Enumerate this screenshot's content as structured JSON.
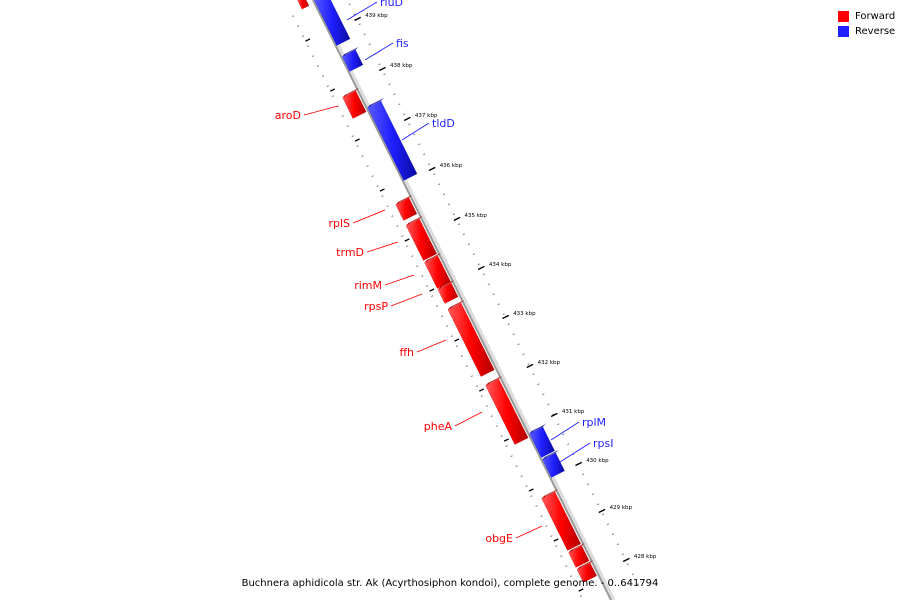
{
  "colors": {
    "forward": "#ff0000",
    "reverse": "#1f1fff",
    "backbone": "#999999"
  },
  "legend": [
    {
      "label": "Forward",
      "color": "#ff0000"
    },
    {
      "label": "Reverse",
      "color": "#1f1fff"
    }
  ],
  "caption": "Buchnera aphidicola str. Ak (Acyrthosiphon kondoi), complete genome. - 0..641794",
  "tick_labels": [
    "439 kbp",
    "438 kbp",
    "437 kbp",
    "436 kbp",
    "435 kbp",
    "434 kbp",
    "433 kbp",
    "432 kbp",
    "431 kbp",
    "430 kbp",
    "429 kbp",
    "428 kbp"
  ],
  "genes": [
    {
      "name": "rluD",
      "strand": "reverse"
    },
    {
      "name": "fis",
      "strand": "reverse"
    },
    {
      "name": "aroD",
      "strand": "forward"
    },
    {
      "name": "tldD",
      "strand": "reverse"
    },
    {
      "name": "rplS",
      "strand": "forward"
    },
    {
      "name": "trmD",
      "strand": "forward"
    },
    {
      "name": "rimM",
      "strand": "forward"
    },
    {
      "name": "rpsP",
      "strand": "forward"
    },
    {
      "name": "ffh",
      "strand": "forward"
    },
    {
      "name": "pheA",
      "strand": "forward"
    },
    {
      "name": "rplM",
      "strand": "reverse"
    },
    {
      "name": "rpsI",
      "strand": "reverse"
    },
    {
      "name": "obgE",
      "strand": "forward"
    }
  ]
}
